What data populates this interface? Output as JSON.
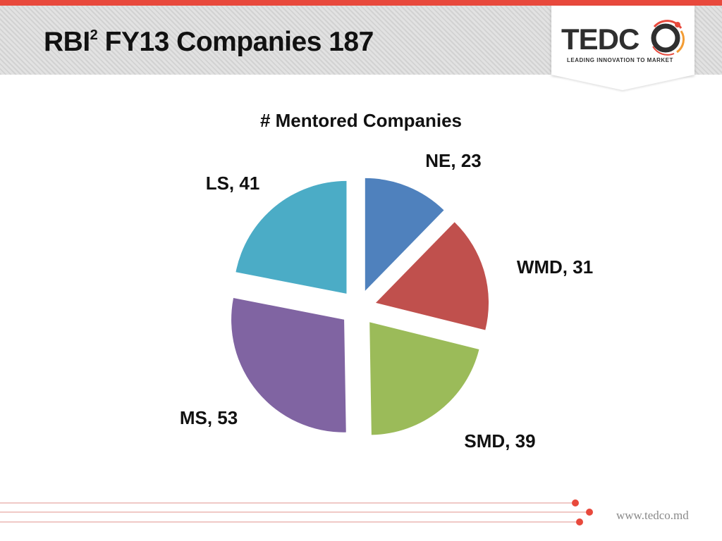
{
  "header": {
    "title_main": "RBI",
    "title_sup": "2",
    "title_rest": " FY13 Companies 187"
  },
  "logo": {
    "word": "TEDC",
    "tagline": "LEADING INNOVATION TO MARKET"
  },
  "footer": {
    "url": "www.tedco.md"
  },
  "colors": {
    "accent": "#e8493c",
    "ne": "#4f81bd",
    "wmd": "#c0504d",
    "smd": "#9bbb59",
    "ms": "#8064a2",
    "ls": "#4bacc6"
  },
  "chart_data": {
    "type": "pie",
    "title": "# Mentored Companies",
    "exploded": true,
    "categories": [
      "NE",
      "WMD",
      "SMD",
      "MS",
      "LS"
    ],
    "values": [
      23,
      31,
      39,
      53,
      41
    ],
    "labels": [
      "NE,  23",
      "WMD,  31",
      "SMD,  39",
      "MS,  53",
      "LS,  41"
    ],
    "colors": [
      "#4f81bd",
      "#c0504d",
      "#9bbb59",
      "#8064a2",
      "#4bacc6"
    ]
  }
}
